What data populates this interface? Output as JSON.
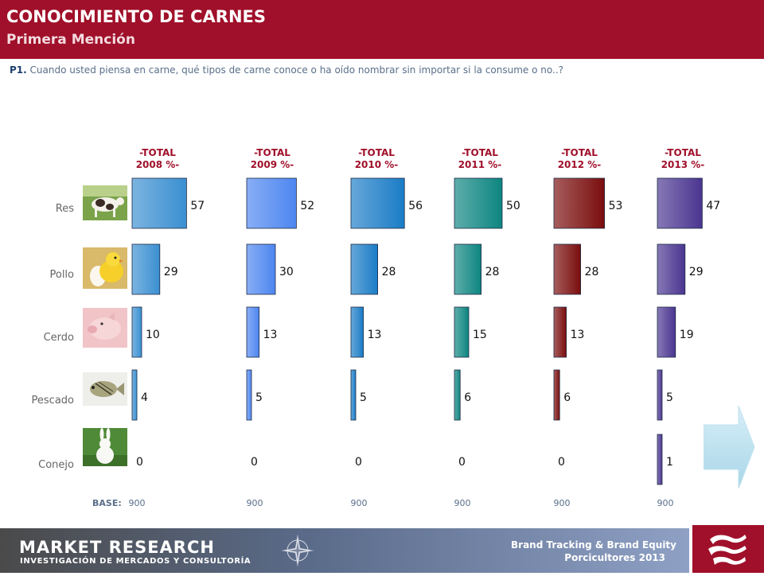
{
  "header": {
    "title": "CONOCIMIENTO DE CARNES",
    "subtitle": "Primera Mención"
  },
  "question": {
    "code": "P1.",
    "text": "Cuando usted piensa en carne, qué tipos de carne conoce o ha oído nombrar sin importar si la consume o no..?"
  },
  "chart_data": {
    "type": "bar",
    "orientation": "horizontal-small-multiples",
    "categories": [
      "Res",
      "Pollo",
      "Cerdo",
      "Pescado",
      "Conejo"
    ],
    "category_icons": [
      "cow-image",
      "chick-image",
      "pig-image",
      "fish-image",
      "rabbit-image"
    ],
    "base_label": "BASE:",
    "series": [
      {
        "name": "-TOTAL\n2008 %-",
        "values": [
          57,
          29,
          10,
          4,
          0
        ],
        "base": "900",
        "color": "#3a8fd1"
      },
      {
        "name": "-TOTAL\n2009 %-",
        "values": [
          52,
          30,
          13,
          5,
          0
        ],
        "base": "900",
        "color": "#4d86f0"
      },
      {
        "name": "-TOTAL\n2010 %-",
        "values": [
          56,
          28,
          13,
          5,
          0
        ],
        "base": "900",
        "color": "#1a7cc6"
      },
      {
        "name": "-TOTAL\n2011 %-",
        "values": [
          50,
          28,
          15,
          6,
          0
        ],
        "base": "900",
        "color": "#0d8580"
      },
      {
        "name": "-TOTAL\n2012 %-",
        "values": [
          53,
          28,
          13,
          6,
          0
        ],
        "base": "900",
        "color": "#7a0d0d"
      },
      {
        "name": "-TOTAL\n2013 %-",
        "values": [
          47,
          29,
          19,
          5,
          1
        ],
        "base": "900",
        "color": "#4a3590"
      }
    ]
  },
  "footer": {
    "logo_main": "MARKET RESEARCH",
    "logo_sub": "INVESTIGACIÓN DE MERCADOS Y CONSULTORÍA",
    "report_line1": "Brand Tracking & Brand Equity",
    "report_line2": "Porcicultores 2013"
  },
  "colors": {
    "header_bg": "#a0102a",
    "series_label": "#a0102a",
    "category_label": "#666666"
  },
  "icons": {
    "next": "next-arrow-icon",
    "compass": "compass-rose-icon",
    "brand": "brand-logo-icon"
  }
}
